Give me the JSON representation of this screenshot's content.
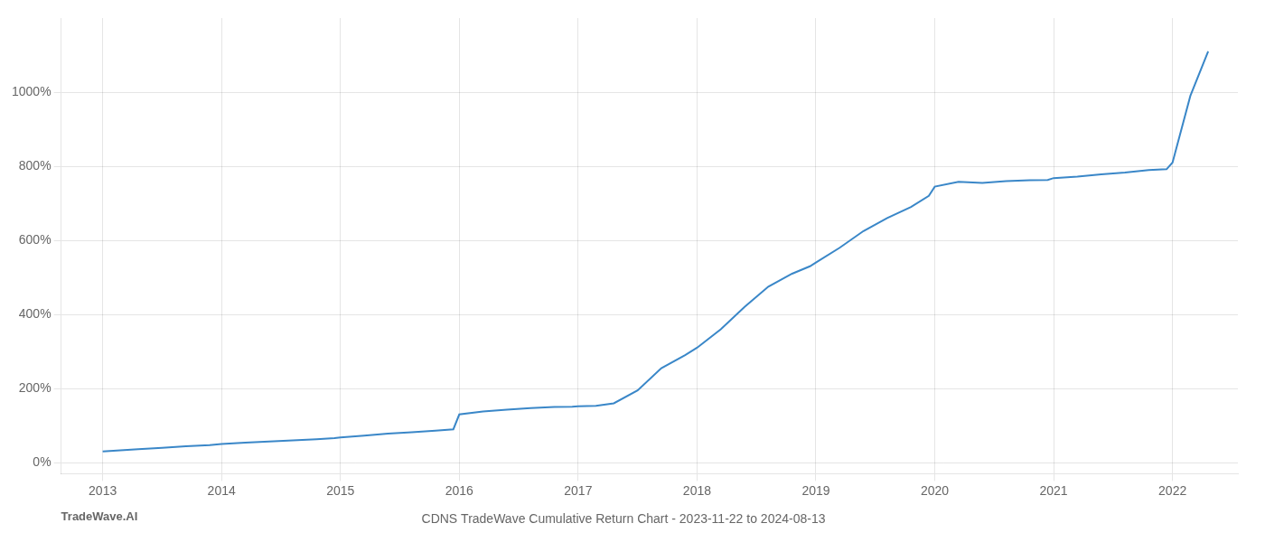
{
  "chart_data": {
    "type": "line",
    "title": "CDNS TradeWave Cumulative Return Chart - 2023-11-22 to 2024-08-13",
    "annotations": [
      "TradeWave.AI"
    ],
    "x": [
      2013.0,
      2013.15,
      2013.3,
      2013.5,
      2013.7,
      2013.9,
      2014.0,
      2014.2,
      2014.4,
      2014.6,
      2014.8,
      2014.95,
      2015.0,
      2015.2,
      2015.4,
      2015.6,
      2015.8,
      2015.95,
      2016.0,
      2016.2,
      2016.4,
      2016.6,
      2016.8,
      2016.95,
      2017.0,
      2017.15,
      2017.3,
      2017.5,
      2017.7,
      2017.9,
      2018.0,
      2018.2,
      2018.4,
      2018.6,
      2018.8,
      2018.95,
      2019.0,
      2019.2,
      2019.4,
      2019.6,
      2019.8,
      2019.95,
      2020.0,
      2020.2,
      2020.4,
      2020.6,
      2020.8,
      2020.95,
      2021.0,
      2021.2,
      2021.4,
      2021.6,
      2021.8,
      2021.95,
      2022.0,
      2022.15,
      2022.3
    ],
    "values": [
      30,
      33,
      36,
      40,
      44,
      47,
      50,
      54,
      57,
      60,
      63,
      66,
      68,
      73,
      78,
      82,
      86,
      90,
      130,
      138,
      143,
      147,
      150,
      151,
      152,
      153,
      160,
      195,
      255,
      290,
      310,
      360,
      420,
      475,
      510,
      530,
      540,
      580,
      625,
      660,
      690,
      720,
      745,
      758,
      755,
      760,
      762,
      763,
      768,
      772,
      778,
      783,
      790,
      792,
      810,
      990,
      1110
    ],
    "color": "#3a87c8",
    "xlim": [
      2012.65,
      2022.55
    ],
    "xticks": [
      2013,
      2014,
      2015,
      2016,
      2017,
      2018,
      2019,
      2020,
      2021,
      2022
    ],
    "ylim": [
      -30,
      1200
    ],
    "yticks": [
      {
        "value": 0,
        "label": "0%"
      },
      {
        "value": 200,
        "label": "200%"
      },
      {
        "value": 400,
        "label": "400%"
      },
      {
        "value": 600,
        "label": "600%"
      },
      {
        "value": 800,
        "label": "800%"
      },
      {
        "value": 1000,
        "label": "1000%"
      }
    ],
    "grid": true
  }
}
